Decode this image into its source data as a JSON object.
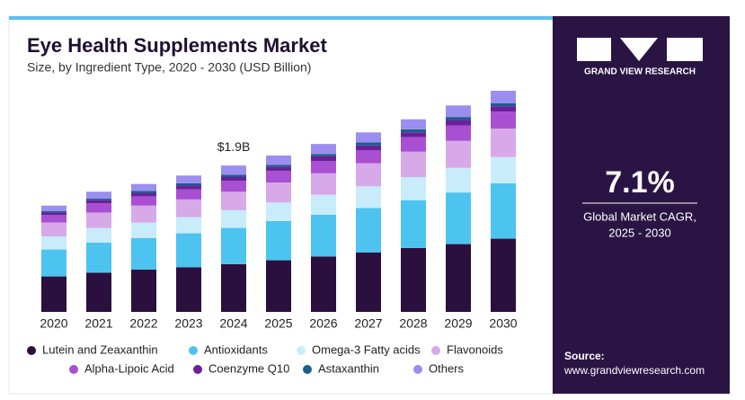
{
  "chart_data": {
    "type": "stacked_bar",
    "title": "Eye Health Supplements Market",
    "subtitle": "Size, by Ingredient Type, 2020 - 2030 (USD Billion)",
    "categories": [
      "2020",
      "2021",
      "2022",
      "2023",
      "2024",
      "2025",
      "2026",
      "2027",
      "2028",
      "2029",
      "2030"
    ],
    "series": [
      {
        "name": "Lutein and Zeaxanthin",
        "color": "#2b0f3f",
        "values": [
          0.46,
          0.51,
          0.55,
          0.58,
          0.62,
          0.67,
          0.72,
          0.77,
          0.83,
          0.88,
          0.95
        ]
      },
      {
        "name": "Antioxidants",
        "color": "#4dc3f0",
        "values": [
          0.35,
          0.39,
          0.41,
          0.44,
          0.47,
          0.51,
          0.54,
          0.58,
          0.62,
          0.67,
          0.72
        ]
      },
      {
        "name": "Omega-3 Fatty acids",
        "color": "#c9ecfb",
        "values": [
          0.17,
          0.19,
          0.2,
          0.21,
          0.23,
          0.24,
          0.26,
          0.28,
          0.3,
          0.32,
          0.34
        ]
      },
      {
        "name": "Flavonoids",
        "color": "#d7a9e8",
        "values": [
          0.18,
          0.2,
          0.22,
          0.23,
          0.24,
          0.26,
          0.28,
          0.3,
          0.33,
          0.35,
          0.37
        ]
      },
      {
        "name": "Alpha-Lipoic Acid",
        "color": "#a94fd2",
        "values": [
          0.1,
          0.12,
          0.12,
          0.13,
          0.14,
          0.15,
          0.16,
          0.17,
          0.19,
          0.2,
          0.22
        ]
      },
      {
        "name": "Coenzyme Q10",
        "color": "#6b1f9a",
        "values": [
          0.03,
          0.04,
          0.04,
          0.05,
          0.05,
          0.05,
          0.06,
          0.06,
          0.06,
          0.07,
          0.07
        ]
      },
      {
        "name": "Astaxanthin",
        "color": "#1b5f8a",
        "values": [
          0.02,
          0.02,
          0.03,
          0.03,
          0.03,
          0.03,
          0.03,
          0.04,
          0.04,
          0.04,
          0.04
        ]
      },
      {
        "name": "Others",
        "color": "#9b8ef0",
        "values": [
          0.07,
          0.09,
          0.09,
          0.1,
          0.12,
          0.12,
          0.13,
          0.13,
          0.13,
          0.15,
          0.16
        ]
      }
    ],
    "annotations": [
      {
        "category": "2024",
        "value": 1.9,
        "label": "$1.9B"
      }
    ]
  },
  "sidebar": {
    "brand": "GRAND VIEW RESEARCH",
    "cagr": "7.1%",
    "cagr_label": [
      "Global Market CAGR,",
      "2025 - 2030"
    ],
    "source_label": "Source:",
    "source": "www.grandviewresearch.com"
  }
}
